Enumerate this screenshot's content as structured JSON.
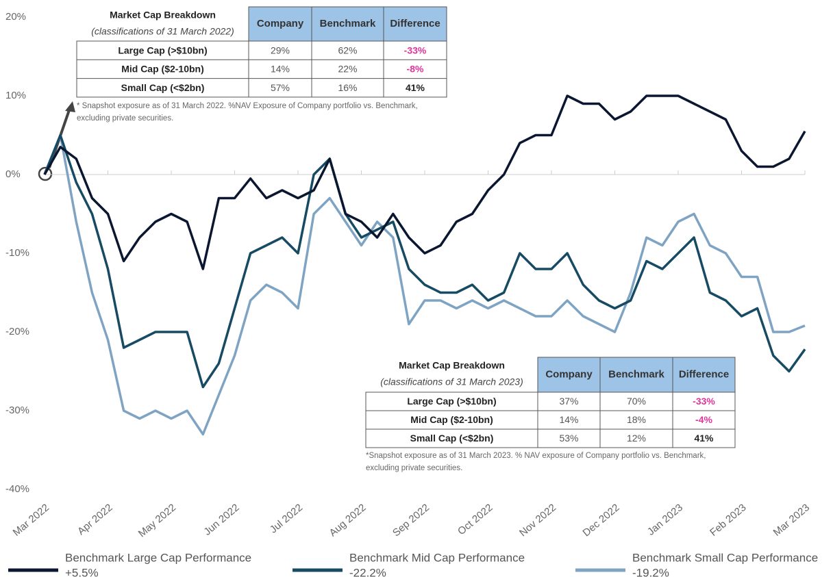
{
  "chart_data": {
    "type": "line",
    "categories": [
      "Mar 2022",
      null,
      null,
      null,
      "Apr 2022",
      null,
      null,
      null,
      "May 2022",
      null,
      null,
      null,
      "Jun 2022",
      null,
      null,
      null,
      "Jul 2022",
      null,
      null,
      null,
      "Aug 2022",
      null,
      null,
      null,
      "Sep 2022",
      null,
      null,
      null,
      "Oct 2022",
      null,
      null,
      null,
      "Nov 2022",
      null,
      null,
      null,
      "Dec 2022",
      null,
      null,
      null,
      "Jan 2023",
      null,
      null,
      null,
      "Feb 2023",
      null,
      null,
      null,
      "Mar 2023"
    ],
    "series": [
      {
        "name": "Benchmark Large Cap Performance",
        "legend_value": "+5.5%",
        "color": "#0b1730",
        "values": [
          0,
          3.5,
          2,
          -3,
          -5,
          -11,
          -8,
          -6,
          -5,
          -6,
          -12,
          -3,
          -3,
          -0.5,
          -3,
          -2,
          -3,
          -2,
          2,
          -5,
          -6,
          -8,
          -5,
          -8,
          -10,
          -9,
          -6,
          -5,
          -2,
          0,
          4,
          5,
          5,
          10,
          9,
          9,
          7,
          8,
          10,
          10,
          10,
          9,
          8,
          7,
          3,
          1,
          1,
          2,
          5.5
        ]
      },
      {
        "name": "Benchmark Mid Cap Performance",
        "legend_value": "-22.2%",
        "color": "#174a63",
        "values": [
          0,
          5,
          -1,
          -5,
          -12,
          -22,
          -21,
          -20,
          -20,
          -20,
          -27,
          -24,
          -17,
          -10,
          -9,
          -8,
          -10,
          0,
          2,
          -5,
          -8,
          -7,
          -6,
          -12,
          -14,
          -15,
          -15,
          -14,
          -16,
          -15,
          -10,
          -12,
          -12,
          -10,
          -14,
          -16,
          -17,
          -16,
          -11,
          -12,
          -10,
          -8,
          -15,
          -16,
          -18,
          -17,
          -23,
          -25,
          -22.2
        ]
      },
      {
        "name": "Benchmark Small Cap Performance",
        "legend_value": "-19.2%",
        "color": "#7fa4c3",
        "values": [
          0,
          5,
          -6,
          -15,
          -21,
          -30,
          -31,
          -30,
          -31,
          -30,
          -33,
          -28,
          -23,
          -16,
          -14,
          -15,
          -17,
          -5,
          -3,
          -6,
          -9,
          -6,
          -8,
          -19,
          -16,
          -16,
          -17,
          -16,
          -17,
          -16,
          -17,
          -18,
          -18,
          -16,
          -18,
          -19,
          -20,
          -15,
          -8,
          -9,
          -6,
          -5,
          -9,
          -10,
          -13,
          -13,
          -20,
          -20,
          -19.2
        ]
      }
    ],
    "ylim": [
      -40,
      20
    ],
    "yticks": [
      {
        "value": -40,
        "label": "-40%"
      },
      {
        "value": -30,
        "label": "-30%"
      },
      {
        "value": -20,
        "label": "-20%"
      },
      {
        "value": -10,
        "label": "-10%"
      },
      {
        "value": 0,
        "label": "0%"
      },
      {
        "value": 10,
        "label": "10%"
      },
      {
        "value": 20,
        "label": "20%"
      }
    ],
    "grid": false,
    "tables": [
      {
        "title": "Market Cap Breakdown",
        "subtitle": "(classifications of 31 March 2022)",
        "columns": [
          "Company",
          "Benchmark",
          "Difference"
        ],
        "rows": [
          [
            "Large Cap (>$10bn)",
            "29%",
            "62%",
            "-33%"
          ],
          [
            "Mid Cap ($2-10bn)",
            "14%",
            "22%",
            "-8%"
          ],
          [
            "Small Cap (<$2bn)",
            "57%",
            "16%",
            "41%"
          ]
        ],
        "footnote": [
          "* Snapshot exposure as of 31 March 2022. %NAV Exposure of Company portfolio vs. Benchmark,",
          "excluding private securities."
        ]
      },
      {
        "title": "Market Cap Breakdown",
        "subtitle": "(classifications of 31 March 2023)",
        "columns": [
          "Company",
          "Benchmark",
          "Difference"
        ],
        "rows": [
          [
            "Large Cap (>$10bn)",
            "37%",
            "70%",
            "-33%"
          ],
          [
            "Mid Cap ($2-10bn)",
            "14%",
            "18%",
            "-4%"
          ],
          [
            "Small Cap (<$2bn)",
            "53%",
            "12%",
            "41%"
          ]
        ],
        "footnote": [
          "*Snapshot exposure as of 31 March 2023. % NAV exposure of Company portfolio vs. Benchmark,",
          "excluding private securities."
        ]
      }
    ]
  }
}
